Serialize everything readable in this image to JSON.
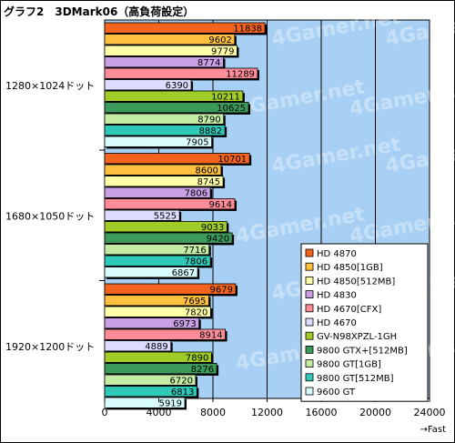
{
  "title": "グラフ2　3DMark06（高負荷設定）",
  "watermark": "4Gamer.net",
  "chart_data": {
    "type": "bar",
    "orientation": "horizontal",
    "title": "グラフ2　3DMark06（高負荷設定）",
    "categories": [
      "1280×1024ドット",
      "1680×1050ドット",
      "1920×1200ドット"
    ],
    "series": [
      {
        "name": "HD 4870",
        "color": "#f5641e",
        "values": [
          11838,
          10701,
          9679
        ]
      },
      {
        "name": "HD 4850[1GB]",
        "color": "#ffc040",
        "values": [
          9602,
          8600,
          7695
        ]
      },
      {
        "name": "HD 4850[512MB]",
        "color": "#ffffa8",
        "values": [
          9779,
          8745,
          7820
        ]
      },
      {
        "name": "HD 4830",
        "color": "#c9a0e6",
        "values": [
          8774,
          7806,
          6973
        ]
      },
      {
        "name": "HD 4670[CFX]",
        "color": "#ff8c99",
        "values": [
          11289,
          9614,
          8914
        ]
      },
      {
        "name": "HD 4670",
        "color": "#dcdcff",
        "values": [
          6390,
          5525,
          4889
        ]
      },
      {
        "name": "GV-N98XPZL-1GH",
        "color": "#a0cc28",
        "values": [
          10211,
          9033,
          7890
        ]
      },
      {
        "name": "9800 GTX+[512MB]",
        "color": "#3c9a5a",
        "values": [
          10625,
          9420,
          8276
        ]
      },
      {
        "name": "9800 GT[1GB]",
        "color": "#c4eca4",
        "values": [
          8790,
          7716,
          6720
        ]
      },
      {
        "name": "9800 GT[512MB]",
        "color": "#30c8b8",
        "values": [
          8882,
          7806,
          6813
        ]
      },
      {
        "name": "9600 GT",
        "color": "#d8fcfc",
        "values": [
          7905,
          6867,
          5919
        ]
      }
    ],
    "xlim": [
      0,
      24000
    ],
    "xticks": [
      0,
      4000,
      8000,
      12000,
      16000,
      20000,
      24000
    ],
    "xtick_labels": [
      "0",
      "4000",
      "8000",
      "12000",
      "16000",
      "20000",
      "24000"
    ],
    "xlabel": "→Fast",
    "grid": true,
    "legend": "bottom-right",
    "plot_background": "#a8d0f4"
  }
}
